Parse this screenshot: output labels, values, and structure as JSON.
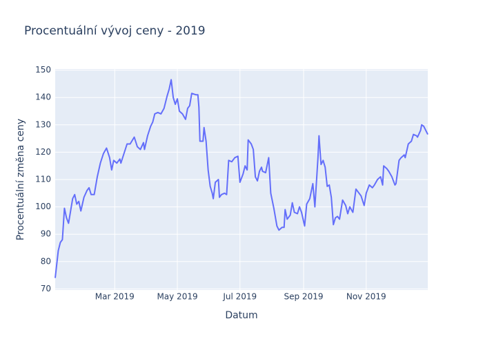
{
  "chart_data": {
    "type": "line",
    "title": "Procentuální vývoj ceny - 2019",
    "x_label": "Datum",
    "y_label": "Procentuální změna ceny",
    "color": "#636efa",
    "grid": true,
    "x": [
      "2019-01-02",
      "2019-01-05",
      "2019-01-07",
      "2019-01-09",
      "2019-01-11",
      "2019-01-13",
      "2019-01-15",
      "2019-01-17",
      "2019-01-19",
      "2019-01-21",
      "2019-01-23",
      "2019-01-25",
      "2019-01-27",
      "2019-01-30",
      "2019-02-02",
      "2019-02-04",
      "2019-02-06",
      "2019-02-09",
      "2019-02-12",
      "2019-02-15",
      "2019-02-18",
      "2019-02-21",
      "2019-02-24",
      "2019-02-26",
      "2019-02-28",
      "2019-03-03",
      "2019-03-06",
      "2019-03-07",
      "2019-03-10",
      "2019-03-13",
      "2019-03-16",
      "2019-03-20",
      "2019-03-23",
      "2019-03-26",
      "2019-03-29",
      "2019-03-30",
      "2019-04-02",
      "2019-04-05",
      "2019-04-07",
      "2019-04-09",
      "2019-04-12",
      "2019-04-15",
      "2019-04-18",
      "2019-04-21",
      "2019-04-23",
      "2019-04-25",
      "2019-04-27",
      "2019-04-29",
      "2019-05-01",
      "2019-05-03",
      "2019-05-06",
      "2019-05-09",
      "2019-05-11",
      "2019-05-13",
      "2019-05-15",
      "2019-05-19",
      "2019-05-21",
      "2019-05-22",
      "2019-05-23",
      "2019-05-26",
      "2019-05-27",
      "2019-05-29",
      "2019-05-31",
      "2019-06-02",
      "2019-06-04",
      "2019-06-05",
      "2019-06-07",
      "2019-06-10",
      "2019-06-11",
      "2019-06-13",
      "2019-06-16",
      "2019-06-18",
      "2019-06-20",
      "2019-06-23",
      "2019-06-26",
      "2019-06-29",
      "2019-07-01",
      "2019-07-04",
      "2019-07-06",
      "2019-07-08",
      "2019-07-09",
      "2019-07-12",
      "2019-07-14",
      "2019-07-16",
      "2019-07-18",
      "2019-07-20",
      "2019-07-22",
      "2019-07-23",
      "2019-07-26",
      "2019-07-29",
      "2019-07-31",
      "2019-08-03",
      "2019-08-06",
      "2019-08-08",
      "2019-08-11",
      "2019-08-13",
      "2019-08-14",
      "2019-08-16",
      "2019-08-19",
      "2019-08-21",
      "2019-08-23",
      "2019-08-26",
      "2019-08-28",
      "2019-08-30",
      "2019-09-02",
      "2019-09-04",
      "2019-09-07",
      "2019-09-10",
      "2019-09-12",
      "2019-09-15",
      "2019-09-16",
      "2019-09-18",
      "2019-09-20",
      "2019-09-22",
      "2019-09-24",
      "2019-09-26",
      "2019-09-28",
      "2019-09-30",
      "2019-10-02",
      "2019-10-04",
      "2019-10-06",
      "2019-10-09",
      "2019-10-12",
      "2019-10-14",
      "2019-10-16",
      "2019-10-19",
      "2019-10-22",
      "2019-10-24",
      "2019-10-27",
      "2019-10-30",
      "2019-11-01",
      "2019-11-04",
      "2019-11-07",
      "2019-11-09",
      "2019-11-12",
      "2019-11-15",
      "2019-11-17",
      "2019-11-18",
      "2019-11-21",
      "2019-11-23",
      "2019-11-26",
      "2019-11-29",
      "2019-11-30",
      "2019-12-03",
      "2019-12-05",
      "2019-12-08",
      "2019-12-09",
      "2019-12-12",
      "2019-12-15",
      "2019-12-17",
      "2019-12-20",
      "2019-12-21",
      "2019-12-24",
      "2019-12-25",
      "2019-12-27",
      "2019-12-31"
    ],
    "values": [
      74,
      84,
      87,
      88,
      99.5,
      96,
      94,
      98.5,
      103,
      104.5,
      101,
      102,
      98.5,
      103.5,
      106,
      107,
      104.5,
      104.5,
      111,
      116,
      119.5,
      121.5,
      118,
      113.5,
      117,
      116,
      117.5,
      116,
      119.5,
      123,
      123,
      125.5,
      122,
      121,
      123.5,
      121,
      126,
      129.5,
      131,
      134,
      134.5,
      134,
      136,
      140.5,
      143,
      146.5,
      140,
      137.5,
      139.5,
      135,
      134,
      132,
      136,
      137,
      141.5,
      141,
      141,
      136.5,
      124,
      124,
      129,
      124,
      113.5,
      107.5,
      105,
      103,
      109,
      110,
      103.5,
      104.5,
      105,
      104.5,
      117,
      116.5,
      118,
      118.5,
      109,
      112,
      115,
      113.5,
      124.5,
      123,
      121,
      111,
      109.5,
      113,
      114.5,
      113,
      112.5,
      118,
      105,
      99.5,
      93,
      91.5,
      92.5,
      92.5,
      99,
      95.5,
      97,
      101.5,
      98,
      97.5,
      100,
      98,
      93,
      101,
      103,
      108.5,
      100,
      118,
      126,
      115.5,
      117,
      114.5,
      107.5,
      108,
      103.5,
      93.5,
      96,
      96.5,
      95.5,
      102.5,
      100.5,
      97.5,
      100,
      98,
      106.5,
      105.5,
      104,
      100.5,
      105,
      108,
      107,
      108,
      110,
      111,
      108,
      115,
      114,
      113,
      111,
      108,
      108.5,
      117,
      118,
      119,
      118,
      123,
      124,
      126.5,
      126,
      125.5,
      128,
      130,
      129.5,
      126.5
    ],
    "xlim": [
      "2019-01-02",
      "2019-12-31"
    ],
    "xticks": [
      {
        "value": "2019-03-01",
        "label": "Mar 2019"
      },
      {
        "value": "2019-05-01",
        "label": "May 2019"
      },
      {
        "value": "2019-07-01",
        "label": "Jul 2019"
      },
      {
        "value": "2019-09-01",
        "label": "Sep 2019"
      },
      {
        "value": "2019-11-01",
        "label": "Nov 2019"
      }
    ],
    "ylim": [
      69.6,
      150.4
    ],
    "yticks": [
      70,
      80,
      90,
      100,
      110,
      120,
      130,
      140,
      150
    ]
  }
}
